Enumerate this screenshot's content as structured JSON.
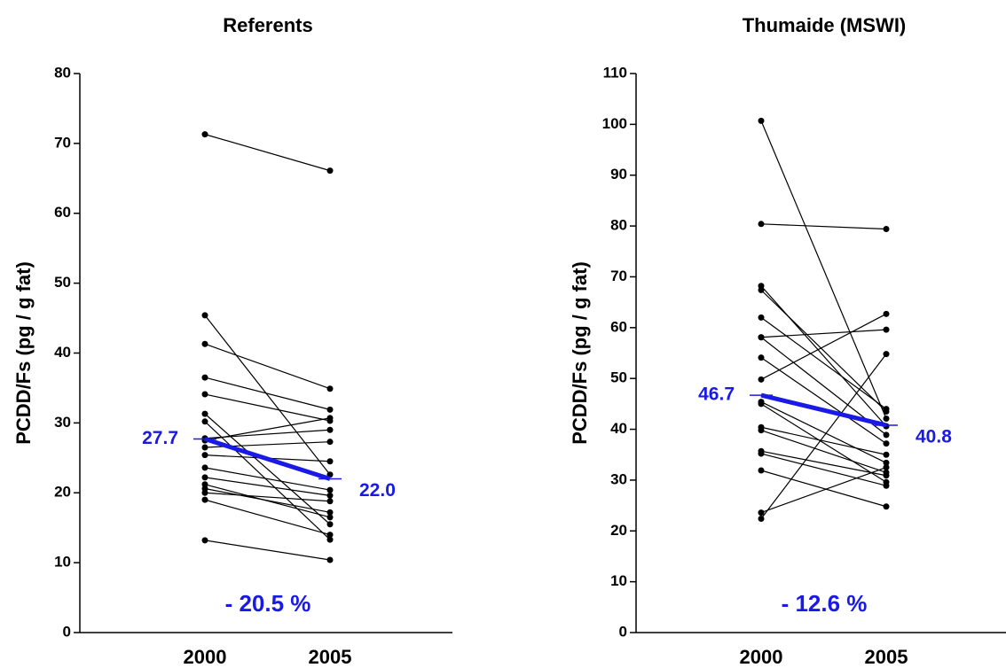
{
  "chart_data": [
    {
      "type": "line",
      "title": "Referents",
      "y_label": "PCDD/Fs (pg / g fat)",
      "categories": [
        "2000",
        "2005"
      ],
      "ylim": [
        0,
        80
      ],
      "yticks": [
        0,
        10,
        20,
        30,
        40,
        50,
        60,
        70,
        80
      ],
      "subjects": {
        "color": "#000000",
        "values": [
          [
            71.3,
            66.1
          ],
          [
            45.4,
            22.6
          ],
          [
            41.3,
            34.9
          ],
          [
            36.5,
            31.9
          ],
          [
            34.1,
            30.3
          ],
          [
            31.3,
            15.5
          ],
          [
            30.2,
            13.3
          ],
          [
            27.8,
            29.0
          ],
          [
            27.5,
            30.7
          ],
          [
            26.5,
            27.3
          ],
          [
            25.4,
            24.5
          ],
          [
            23.6,
            20.4
          ],
          [
            22.2,
            19.6
          ],
          [
            21.2,
            16.5
          ],
          [
            20.6,
            17.2
          ],
          [
            20.0,
            18.8
          ],
          [
            19.0,
            14.0
          ],
          [
            13.2,
            10.4
          ]
        ]
      },
      "mean": {
        "color": "#1a1ae6",
        "values": [
          27.7,
          22.0
        ],
        "value_labels": [
          "27.7",
          "22.0"
        ]
      },
      "annotation": "- 20.5 %"
    },
    {
      "type": "line",
      "title": "Thumaide (MSWI)",
      "y_label": "PCDD/Fs (pg / g fat)",
      "categories": [
        "2000",
        "2005"
      ],
      "ylim": [
        0,
        110
      ],
      "yticks": [
        0,
        10,
        20,
        30,
        40,
        50,
        60,
        70,
        80,
        90,
        100,
        110
      ],
      "subjects": {
        "color": "#000000",
        "values": [
          [
            100.7,
            42.1
          ],
          [
            80.4,
            79.4
          ],
          [
            68.2,
            40.6
          ],
          [
            67.4,
            43.5
          ],
          [
            62.0,
            44.0
          ],
          [
            58.1,
            59.6
          ],
          [
            58.1,
            38.9
          ],
          [
            54.1,
            37.2
          ],
          [
            49.8,
            62.7
          ],
          [
            45.4,
            33.4
          ],
          [
            45.0,
            29.6
          ],
          [
            40.4,
            35.0
          ],
          [
            39.8,
            31.5
          ],
          [
            35.7,
            30.9
          ],
          [
            35.2,
            28.9
          ],
          [
            31.9,
            24.8
          ],
          [
            23.6,
            32.5
          ],
          [
            22.4,
            54.8
          ]
        ]
      },
      "mean": {
        "color": "#1a1ae6",
        "values": [
          46.7,
          40.8
        ],
        "value_labels": [
          "46.7",
          "40.8"
        ]
      },
      "annotation": "- 12.6 %"
    }
  ]
}
